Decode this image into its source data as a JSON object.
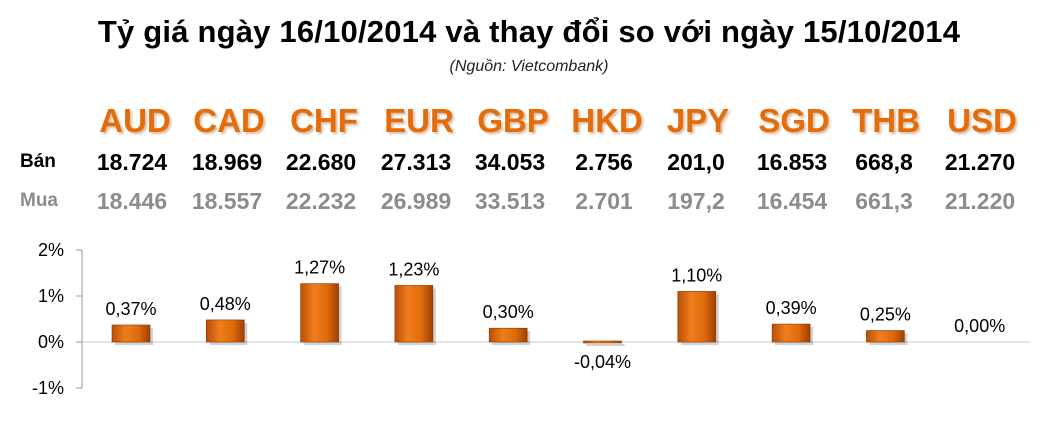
{
  "header": {
    "title": "Tỷ giá ngày 16/10/2014 và thay đổi so với ngày 15/10/2014",
    "source": "(Nguồn: Vietcombank)"
  },
  "table": {
    "sell_label": "Bán",
    "buy_label": "Mua",
    "currencies": [
      "AUD",
      "CAD",
      "CHF",
      "EUR",
      "GBP",
      "HKD",
      "JPY",
      "SGD",
      "THB",
      "USD"
    ],
    "sell": [
      "18.724",
      "18.969",
      "22.680",
      "27.313",
      "34.053",
      "2.756",
      "201,0",
      "16.853",
      "668,8",
      "21.270"
    ],
    "buy": [
      "18.446",
      "18.557",
      "22.232",
      "26.989",
      "33.513",
      "2.701",
      "197,2",
      "16.454",
      "661,3",
      "21.220"
    ]
  },
  "colors": {
    "accent": "#e46c0a",
    "bar": "#e36c09",
    "buy_text": "#8c8c8c"
  },
  "chart_data": {
    "type": "bar",
    "categories": [
      "AUD",
      "CAD",
      "CHF",
      "EUR",
      "GBP",
      "HKD",
      "JPY",
      "SGD",
      "THB",
      "USD"
    ],
    "values": [
      0.37,
      0.48,
      1.27,
      1.23,
      0.3,
      -0.04,
      1.1,
      0.39,
      0.25,
      0.0
    ],
    "data_labels": [
      "0,37%",
      "0,48%",
      "1,27%",
      "1,23%",
      "0,30%",
      "-0,04%",
      "1,10%",
      "0,39%",
      "0,25%",
      "0,00%"
    ],
    "ylim": [
      -1,
      2
    ],
    "yticks": [
      2,
      1,
      0,
      -1
    ],
    "ytick_labels": [
      "2%",
      "1%",
      "0%",
      "-1%"
    ],
    "grid": false
  }
}
